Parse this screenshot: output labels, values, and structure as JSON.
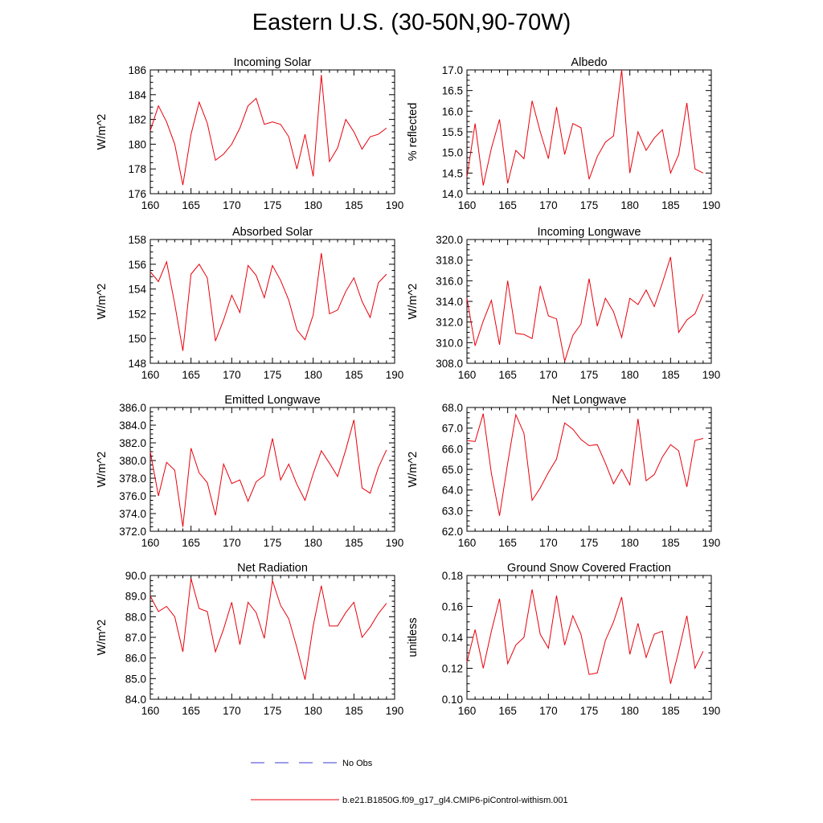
{
  "title": "Eastern U.S. (30-50N,90-70W)",
  "colors": {
    "series": "#e8000b",
    "noobs": "#3a3ad0",
    "axis": "#000000"
  },
  "legend": {
    "noobs_label": "No Obs",
    "model_label": "b.e21.B1850G.f09_g17_gl4.CMIP6-piControl-withism.001"
  },
  "chart_data": [
    {
      "type": "line",
      "title": "Incoming Solar",
      "ylabel": "W/m^2",
      "xlim": [
        160,
        190
      ],
      "ylim": [
        176,
        186
      ],
      "xticks": [
        160,
        165,
        170,
        175,
        180,
        185,
        190
      ],
      "yticks": [
        "176",
        "178",
        "180",
        "182",
        "184",
        "186"
      ],
      "x": [
        160,
        161,
        162,
        163,
        164,
        165,
        166,
        167,
        168,
        169,
        170,
        171,
        172,
        173,
        174,
        175,
        176,
        177,
        178,
        179,
        180,
        181,
        182,
        183,
        184,
        185,
        186,
        187,
        188,
        189
      ],
      "values": [
        181.1,
        183.1,
        181.8,
        180.0,
        176.7,
        180.8,
        183.4,
        181.7,
        178.7,
        179.2,
        180.0,
        181.3,
        183.1,
        183.7,
        181.6,
        181.8,
        181.6,
        180.6,
        178.0,
        180.8,
        177.4,
        185.6,
        178.6,
        179.7,
        182.0,
        181.0,
        179.6,
        180.6,
        180.8,
        181.3
      ]
    },
    {
      "type": "line",
      "title": "Albedo",
      "ylabel": "% reflected",
      "xlim": [
        160,
        190
      ],
      "ylim": [
        14.0,
        17.0
      ],
      "xticks": [
        160,
        165,
        170,
        175,
        180,
        185,
        190
      ],
      "yticks": [
        "14.0",
        "14.5",
        "15.0",
        "15.5",
        "16.0",
        "16.5",
        "17.0"
      ],
      "x": [
        160,
        161,
        162,
        163,
        164,
        165,
        166,
        167,
        168,
        169,
        170,
        171,
        172,
        173,
        174,
        175,
        176,
        177,
        178,
        179,
        180,
        181,
        182,
        183,
        184,
        185,
        186,
        187,
        188,
        189
      ],
      "values": [
        14.4,
        15.7,
        14.2,
        15.1,
        15.8,
        14.25,
        15.05,
        14.85,
        16.25,
        15.5,
        14.85,
        16.1,
        14.95,
        15.7,
        15.6,
        14.35,
        14.9,
        15.25,
        15.4,
        17.0,
        14.5,
        15.5,
        15.05,
        15.35,
        15.55,
        14.5,
        14.95,
        16.2,
        14.6,
        14.5
      ]
    },
    {
      "type": "line",
      "title": "Absorbed Solar",
      "ylabel": "W/m^2",
      "xlim": [
        160,
        190
      ],
      "ylim": [
        148,
        158
      ],
      "xticks": [
        160,
        165,
        170,
        175,
        180,
        185,
        190
      ],
      "yticks": [
        "148",
        "150",
        "152",
        "154",
        "156",
        "158"
      ],
      "x": [
        160,
        161,
        162,
        163,
        164,
        165,
        166,
        167,
        168,
        169,
        170,
        171,
        172,
        173,
        174,
        175,
        176,
        177,
        178,
        179,
        180,
        181,
        182,
        183,
        184,
        185,
        186,
        187,
        188,
        189
      ],
      "values": [
        155.4,
        154.6,
        156.2,
        152.8,
        149.0,
        155.2,
        156.0,
        154.9,
        149.8,
        151.5,
        153.5,
        152.1,
        155.9,
        155.1,
        153.3,
        155.9,
        154.7,
        153.1,
        150.7,
        149.9,
        151.9,
        156.9,
        152.0,
        152.3,
        153.8,
        154.9,
        153.0,
        151.7,
        154.5,
        155.2
      ]
    },
    {
      "type": "line",
      "title": "Incoming Longwave",
      "ylabel": "W/m^2",
      "xlim": [
        160,
        190
      ],
      "ylim": [
        308.0,
        320.0
      ],
      "xticks": [
        160,
        165,
        170,
        175,
        180,
        185,
        190
      ],
      "yticks": [
        "308.0",
        "310.0",
        "312.0",
        "314.0",
        "316.0",
        "318.0",
        "320.0"
      ],
      "x": [
        160,
        161,
        162,
        163,
        164,
        165,
        166,
        167,
        168,
        169,
        170,
        171,
        172,
        173,
        174,
        175,
        176,
        177,
        178,
        179,
        180,
        181,
        182,
        183,
        184,
        185,
        186,
        187,
        188,
        189
      ],
      "values": [
        314.3,
        309.7,
        312.1,
        314.1,
        309.8,
        316.0,
        310.9,
        310.8,
        310.4,
        315.5,
        312.6,
        312.3,
        308.2,
        310.7,
        311.8,
        316.2,
        311.6,
        314.3,
        313.0,
        310.5,
        314.3,
        313.7,
        315.1,
        313.5,
        315.8,
        318.3,
        311.0,
        312.2,
        312.8,
        314.7
      ]
    },
    {
      "type": "line",
      "title": "Emitted Longwave",
      "ylabel": "W/m^2",
      "xlim": [
        160,
        190
      ],
      "ylim": [
        372.0,
        386.0
      ],
      "xticks": [
        160,
        165,
        170,
        175,
        180,
        185,
        190
      ],
      "yticks": [
        "372.0",
        "374.0",
        "376.0",
        "378.0",
        "380.0",
        "382.0",
        "384.0",
        "386.0"
      ],
      "x": [
        160,
        161,
        162,
        163,
        164,
        165,
        166,
        167,
        168,
        169,
        170,
        171,
        172,
        173,
        174,
        175,
        176,
        177,
        178,
        179,
        180,
        181,
        182,
        183,
        184,
        185,
        186,
        187,
        188,
        189
      ],
      "values": [
        381.0,
        376.0,
        379.8,
        378.9,
        372.5,
        381.4,
        378.6,
        377.5,
        373.8,
        379.6,
        377.4,
        377.8,
        375.4,
        377.6,
        378.3,
        382.5,
        377.8,
        379.6,
        377.3,
        375.5,
        378.5,
        381.1,
        379.7,
        378.2,
        381.2,
        384.6,
        376.9,
        376.3,
        379.2,
        381.2
      ]
    },
    {
      "type": "line",
      "title": "Net Longwave",
      "ylabel": "W/m^2",
      "xlim": [
        160,
        190
      ],
      "ylim": [
        62.0,
        68.0
      ],
      "xticks": [
        160,
        165,
        170,
        175,
        180,
        185,
        190
      ],
      "yticks": [
        "62.0",
        "63.0",
        "64.0",
        "65.0",
        "66.0",
        "67.0",
        "68.0"
      ],
      "x": [
        160,
        161,
        162,
        163,
        164,
        165,
        166,
        167,
        168,
        169,
        170,
        171,
        172,
        173,
        174,
        175,
        176,
        177,
        178,
        179,
        180,
        181,
        182,
        183,
        184,
        185,
        186,
        187,
        188,
        189
      ],
      "values": [
        66.4,
        66.35,
        67.7,
        64.8,
        62.75,
        65.3,
        67.65,
        66.75,
        63.5,
        64.1,
        64.85,
        65.5,
        67.25,
        66.95,
        66.45,
        66.15,
        66.2,
        65.3,
        64.3,
        65.0,
        64.25,
        67.45,
        64.45,
        64.75,
        65.6,
        66.2,
        65.9,
        64.15,
        66.4,
        66.5
      ]
    },
    {
      "type": "line",
      "title": "Net Radiation",
      "ylabel": "W/m^2",
      "xlim": [
        160,
        190
      ],
      "ylim": [
        84.0,
        90.0
      ],
      "xticks": [
        160,
        165,
        170,
        175,
        180,
        185,
        190
      ],
      "yticks": [
        "84.0",
        "85.0",
        "86.0",
        "87.0",
        "88.0",
        "89.0",
        "90.0"
      ],
      "x": [
        160,
        161,
        162,
        163,
        164,
        165,
        166,
        167,
        168,
        169,
        170,
        171,
        172,
        173,
        174,
        175,
        176,
        177,
        178,
        179,
        180,
        181,
        182,
        183,
        184,
        185,
        186,
        187,
        188,
        189
      ],
      "values": [
        89.0,
        88.25,
        88.5,
        88.0,
        86.3,
        89.85,
        88.4,
        88.25,
        86.3,
        87.4,
        88.7,
        86.65,
        88.7,
        88.2,
        86.95,
        89.75,
        88.55,
        87.9,
        86.5,
        84.95,
        87.55,
        89.5,
        87.55,
        87.55,
        88.2,
        88.7,
        87.0,
        87.5,
        88.15,
        88.65
      ]
    },
    {
      "type": "line",
      "title": "Ground Snow Covered Fraction",
      "ylabel": "unitless",
      "xlim": [
        160,
        190
      ],
      "ylim": [
        0.1,
        0.18
      ],
      "xticks": [
        160,
        165,
        170,
        175,
        180,
        185,
        190
      ],
      "yticks": [
        "0.10",
        "0.12",
        "0.14",
        "0.16",
        "0.18"
      ],
      "x": [
        160,
        161,
        162,
        163,
        164,
        165,
        166,
        167,
        168,
        169,
        170,
        171,
        172,
        173,
        174,
        175,
        176,
        177,
        178,
        179,
        180,
        181,
        182,
        183,
        184,
        185,
        186,
        187,
        188,
        189
      ],
      "values": [
        0.124,
        0.145,
        0.12,
        0.144,
        0.165,
        0.123,
        0.135,
        0.14,
        0.171,
        0.142,
        0.133,
        0.167,
        0.135,
        0.154,
        0.142,
        0.116,
        0.117,
        0.138,
        0.15,
        0.166,
        0.129,
        0.149,
        0.127,
        0.142,
        0.144,
        0.11,
        0.131,
        0.154,
        0.12,
        0.131
      ]
    }
  ]
}
